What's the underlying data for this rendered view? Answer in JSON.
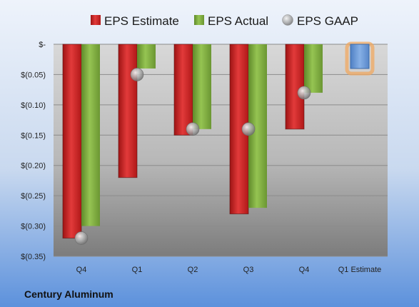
{
  "chart_data": {
    "type": "bar",
    "categories": [
      "Q4",
      "Q1",
      "Q2",
      "Q3",
      "Q4",
      "Q1 Estimate"
    ],
    "series": [
      {
        "name": "EPS Estimate",
        "values": [
          -0.32,
          -0.22,
          -0.15,
          -0.28,
          -0.14,
          null
        ]
      },
      {
        "name": "EPS Actual",
        "values": [
          -0.3,
          -0.04,
          -0.14,
          -0.27,
          -0.08,
          null
        ]
      },
      {
        "name": "EPS GAAP",
        "values": [
          -0.32,
          -0.05,
          -0.14,
          -0.14,
          -0.08,
          null
        ]
      }
    ],
    "forecast": {
      "category": "Q1 Estimate",
      "value": -0.04
    },
    "y_ticks": [
      {
        "value": 0,
        "label": "$-"
      },
      {
        "value": -0.05,
        "label": "$(0.05)"
      },
      {
        "value": -0.1,
        "label": "$(0.10)"
      },
      {
        "value": -0.15,
        "label": "$(0.15)"
      },
      {
        "value": -0.2,
        "label": "$(0.20)"
      },
      {
        "value": -0.25,
        "label": "$(0.25)"
      },
      {
        "value": -0.3,
        "label": "$(0.30)"
      },
      {
        "value": -0.35,
        "label": "$(0.35)"
      }
    ],
    "ylim": [
      -0.35,
      0
    ],
    "legend_position": "top",
    "grid": true,
    "colors": {
      "estimate": "#cc2222",
      "actual": "#7aa83a",
      "gaap": "#a8a8a8",
      "forecast": "#6f9fd8",
      "forecast_glow": "#f0a860"
    }
  },
  "footer": {
    "company": "Century Aluminum"
  }
}
